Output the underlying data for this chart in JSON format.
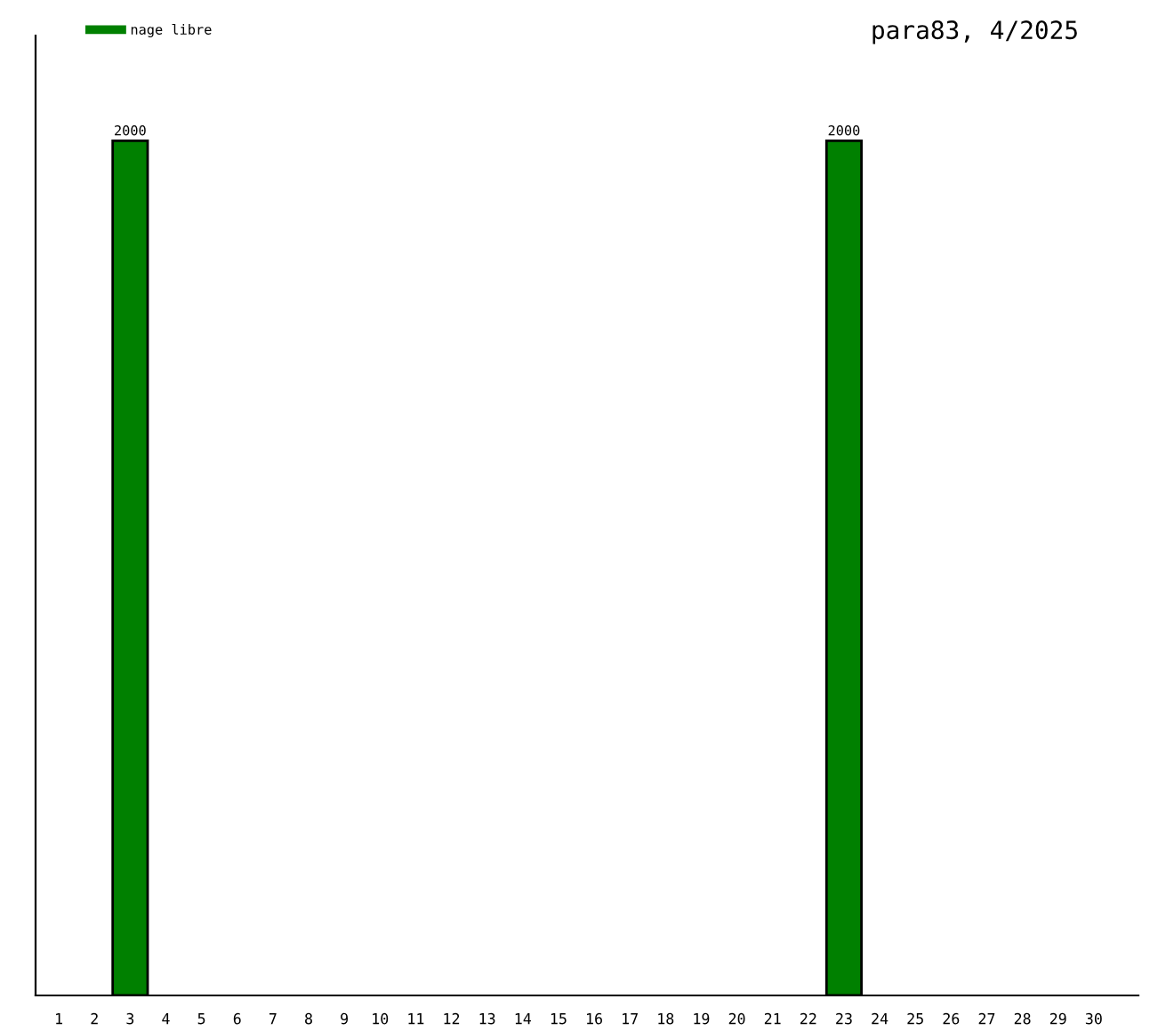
{
  "chart_data": {
    "type": "bar",
    "title": "para83, 4/2025",
    "categories": [
      "1",
      "2",
      "3",
      "4",
      "5",
      "6",
      "7",
      "8",
      "9",
      "10",
      "11",
      "12",
      "13",
      "14",
      "15",
      "16",
      "17",
      "18",
      "19",
      "20",
      "21",
      "22",
      "23",
      "24",
      "25",
      "26",
      "27",
      "28",
      "29",
      "30"
    ],
    "series": [
      {
        "name": "nage libre",
        "color": "#008000",
        "values": [
          null,
          null,
          2000,
          null,
          null,
          null,
          null,
          null,
          null,
          null,
          null,
          null,
          null,
          null,
          null,
          null,
          null,
          null,
          null,
          null,
          null,
          null,
          2000,
          null,
          null,
          null,
          null,
          null,
          null,
          null
        ]
      }
    ],
    "data_labels": true,
    "legend": "top left",
    "grid": false
  }
}
